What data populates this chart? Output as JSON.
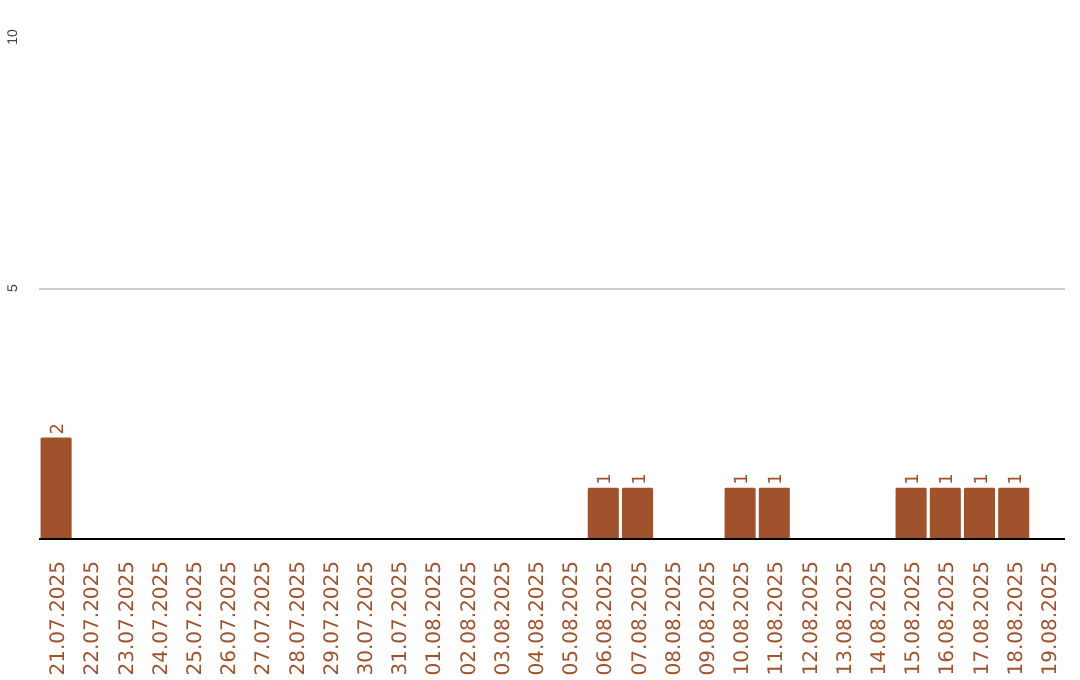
{
  "chart_data": {
    "type": "bar",
    "categories": [
      "21.07.2025",
      "22.07.2025",
      "23.07.2025",
      "24.07.2025",
      "25.07.2025",
      "26.07.2025",
      "27.07.2025",
      "28.07.2025",
      "29.07.2025",
      "30.07.2025",
      "31.07.2025",
      "01.08.2025",
      "02.08.2025",
      "03.08.2025",
      "04.08.2025",
      "05.08.2025",
      "06.08.2025",
      "07.08.2025",
      "08.08.2025",
      "09.08.2025",
      "10.08.2025",
      "11.08.2025",
      "12.08.2025",
      "13.08.2025",
      "14.08.2025",
      "15.08.2025",
      "16.08.2025",
      "17.08.2025",
      "18.08.2025",
      "19.08.2025"
    ],
    "values": [
      2,
      0,
      0,
      0,
      0,
      0,
      0,
      0,
      0,
      0,
      0,
      0,
      0,
      0,
      0,
      0,
      1,
      1,
      0,
      0,
      1,
      1,
      0,
      0,
      0,
      1,
      1,
      1,
      1,
      0
    ],
    "color": "#a0522d",
    "value_labels": [
      "2",
      null,
      null,
      null,
      null,
      null,
      null,
      null,
      null,
      null,
      null,
      null,
      null,
      null,
      null,
      null,
      "1",
      "1",
      null,
      null,
      "1",
      "1",
      null,
      null,
      null,
      "1",
      "1",
      "1",
      "1",
      null
    ],
    "ylim": [
      0,
      10
    ],
    "yticks": [
      5,
      10
    ],
    "grid": "y"
  }
}
